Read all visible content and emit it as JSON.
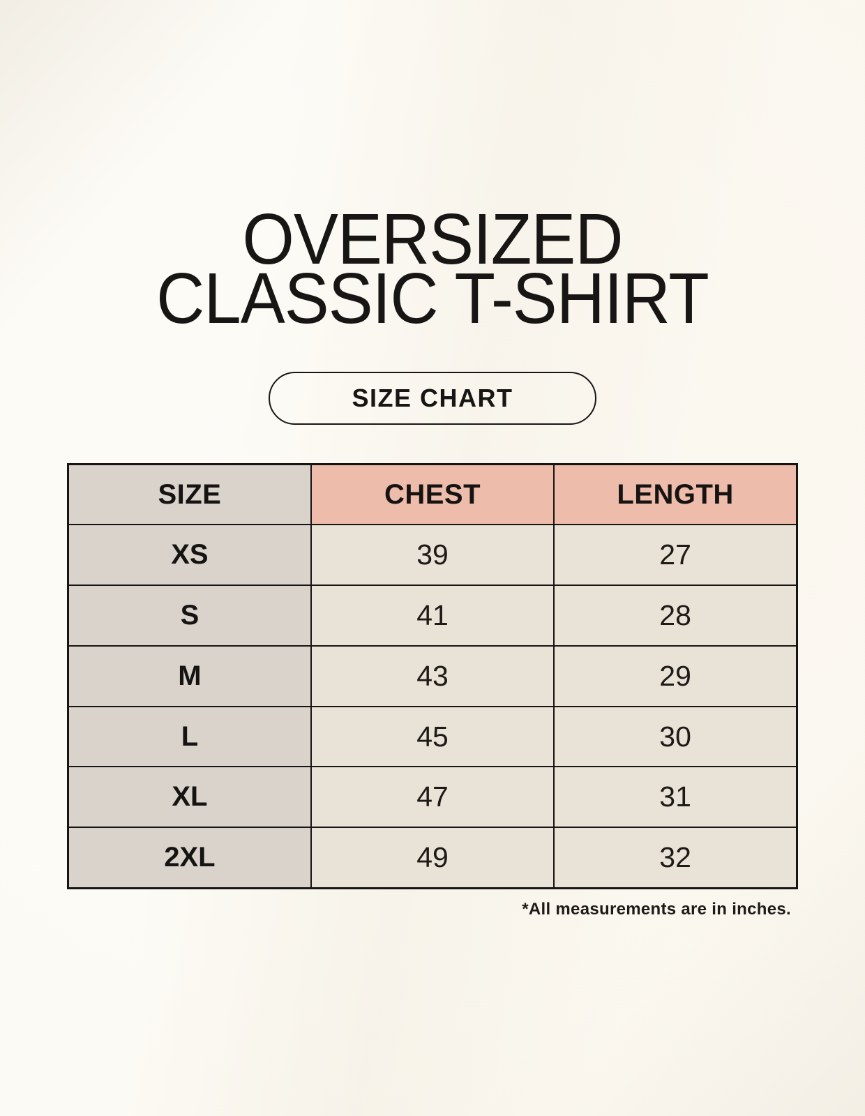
{
  "header": {
    "title_line1": "OVERSIZED",
    "title_line2": "CLASSIC T-SHIRT",
    "badge_label": "SIZE CHART"
  },
  "chart_data": {
    "type": "table",
    "title": "OVERSIZED CLASSIC T-SHIRT",
    "subtitle": "SIZE CHART",
    "columns": [
      "SIZE",
      "CHEST",
      "LENGTH"
    ],
    "rows": [
      [
        "XS",
        "39",
        "27"
      ],
      [
        "S",
        "41",
        "28"
      ],
      [
        "M",
        "43",
        "29"
      ],
      [
        "L",
        "45",
        "30"
      ],
      [
        "XL",
        "47",
        "31"
      ],
      [
        "2XL",
        "49",
        "32"
      ]
    ],
    "units": "inches",
    "note": "*All measurements are in inches."
  },
  "colors": {
    "background": "#faf6ee",
    "header_accent_pink": "#eebcab",
    "size_column_gray": "#d9d3cc",
    "data_cell_beige": "#e9e2d6",
    "border_black": "#171513",
    "text_black": "#181614"
  }
}
